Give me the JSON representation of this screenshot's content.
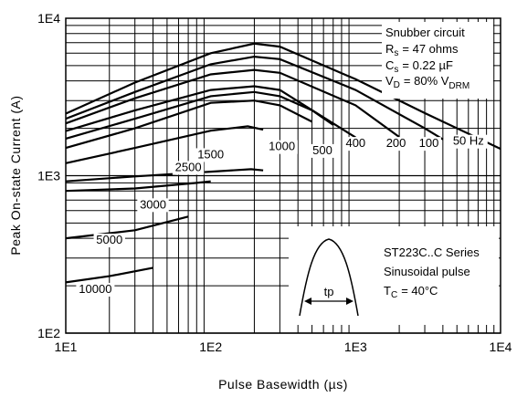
{
  "chart_data": {
    "type": "line",
    "xlabel": "Pulse Basewidth (µs)",
    "ylabel": "Peak On-state Current (A)",
    "xscale": "log",
    "yscale": "log",
    "xlim": [
      10,
      10000
    ],
    "ylim": [
      100,
      10000
    ],
    "grid": true,
    "xticks": [
      {
        "value": 10,
        "label": "1E1"
      },
      {
        "value": 100,
        "label": "1E2"
      },
      {
        "value": 1000,
        "label": "1E3"
      },
      {
        "value": 10000,
        "label": "1E4"
      }
    ],
    "yticks": [
      {
        "value": 100,
        "label": "1E2"
      },
      {
        "value": 1000,
        "label": "1E3"
      },
      {
        "value": 10000,
        "label": "1E4"
      }
    ],
    "series": [
      {
        "name": "50 Hz",
        "label_at": [
          6000,
          1570
        ],
        "points": [
          [
            10,
            2480
          ],
          [
            30,
            3900
          ],
          [
            100,
            6000
          ],
          [
            200,
            6900
          ],
          [
            300,
            6600
          ],
          [
            1000,
            4100
          ],
          [
            3000,
            2500
          ],
          [
            10000,
            1480
          ]
        ]
      },
      {
        "name": "100",
        "label_at": [
          3200,
          1520
        ],
        "points": [
          [
            10,
            2300
          ],
          [
            30,
            3400
          ],
          [
            100,
            5100
          ],
          [
            200,
            5700
          ],
          [
            300,
            5500
          ],
          [
            1000,
            3500
          ],
          [
            3000,
            2000
          ],
          [
            4000,
            1700
          ]
        ]
      },
      {
        "name": "200",
        "label_at": [
          1900,
          1520
        ],
        "points": [
          [
            10,
            2150
          ],
          [
            30,
            3100
          ],
          [
            100,
            4400
          ],
          [
            200,
            4700
          ],
          [
            300,
            4500
          ],
          [
            1000,
            2800
          ],
          [
            2000,
            1760
          ]
        ]
      },
      {
        "name": "400",
        "label_at": [
          1000,
          1520
        ],
        "points": [
          [
            10,
            1920
          ],
          [
            30,
            2600
          ],
          [
            100,
            3500
          ],
          [
            200,
            3700
          ],
          [
            300,
            3500
          ],
          [
            1000,
            1750
          ]
        ]
      },
      {
        "name": "500",
        "label_at": [
          590,
          1370
        ],
        "points": [
          [
            10,
            1720
          ],
          [
            30,
            2300
          ],
          [
            100,
            3200
          ],
          [
            200,
            3400
          ],
          [
            300,
            3200
          ],
          [
            500,
            2600
          ],
          [
            700,
            2100
          ]
        ]
      },
      {
        "name": "1000",
        "label_at": [
          310,
          1450
        ],
        "points": [
          [
            10,
            1500
          ],
          [
            30,
            2000
          ],
          [
            100,
            2900
          ],
          [
            200,
            3000
          ],
          [
            300,
            2800
          ],
          [
            500,
            2200
          ]
        ]
      },
      {
        "name": "1500",
        "label_at": [
          100,
          1290
        ],
        "points": [
          [
            10,
            1200
          ],
          [
            30,
            1500
          ],
          [
            100,
            1930
          ],
          [
            180,
            2060
          ],
          [
            230,
            1960
          ]
        ]
      },
      {
        "name": "2500",
        "label_at": [
          70,
          1070
        ],
        "points": [
          [
            10,
            920
          ],
          [
            30,
            990
          ],
          [
            100,
            1060
          ],
          [
            190,
            1100
          ],
          [
            230,
            1080
          ]
        ]
      },
      {
        "name": "3000",
        "label_at": [
          40,
          620
        ],
        "points": [
          [
            10,
            800
          ],
          [
            30,
            830
          ],
          [
            80,
            900
          ],
          [
            100,
            920
          ]
        ]
      },
      {
        "name": "5000",
        "label_at": [
          20,
          370
        ],
        "points": [
          [
            10,
            400
          ],
          [
            30,
            450
          ],
          [
            70,
            550
          ]
        ]
      },
      {
        "name": "10000",
        "label_at": [
          16,
          180
        ],
        "points": [
          [
            10,
            210
          ],
          [
            20,
            230
          ],
          [
            40,
            260
          ]
        ]
      }
    ],
    "annotation_top": [
      "Snubber circuit",
      "R",
      "s",
      "= 47 ohms",
      "C",
      "s",
      "= 0.22 µF",
      "V",
      "D",
      "= 80% V",
      "DRM"
    ],
    "annotation_bottom": {
      "series_name": "ST223C..C Series",
      "waveform": "Sinusoidal pulse",
      "temp_symbol": "T",
      "temp_sub": "C",
      "temp_value": "= 40°C",
      "pulse_label": "tp"
    }
  }
}
